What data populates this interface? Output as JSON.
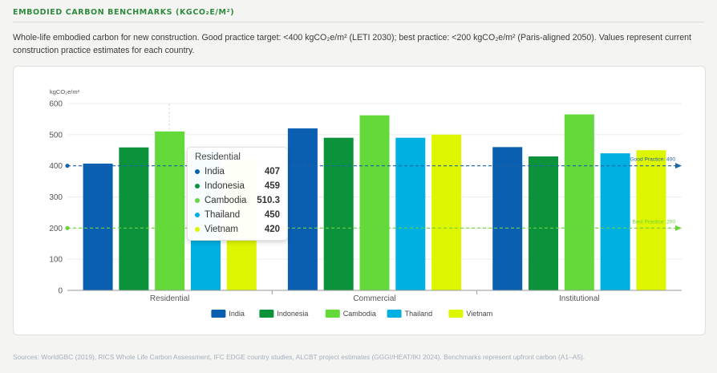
{
  "header": {
    "title": "EMBODIED CARBON BENCHMARKS (KGCO₂E/M²)",
    "description": "Whole-life embodied carbon for new construction. Good practice target: <400 kgCO₂e/m² (LETI 2030); best practice: <200 kgCO₂e/m² (Paris-aligned 2050). Values represent current construction practice estimates for each country."
  },
  "chart_data": {
    "type": "bar",
    "ylabel": "kgCO₂e/m²",
    "ylim": [
      0,
      600
    ],
    "yticks": [
      0,
      100,
      200,
      300,
      400,
      500,
      600
    ],
    "categories": [
      "Residential",
      "Commercial",
      "Institutional"
    ],
    "series": [
      {
        "name": "India",
        "color": "#0a5fb0",
        "values": [
          407,
          520,
          460
        ]
      },
      {
        "name": "Indonesia",
        "color": "#0c923a",
        "values": [
          459,
          490,
          430
        ]
      },
      {
        "name": "Cambodia",
        "color": "#63d93a",
        "values": [
          510.3,
          562,
          565
        ]
      },
      {
        "name": "Thailand",
        "color": "#00b0e0",
        "values": [
          450,
          490,
          440
        ]
      },
      {
        "name": "Vietnam",
        "color": "#def500",
        "values": [
          420,
          500,
          450
        ]
      }
    ],
    "reference_lines": [
      {
        "label": "Good Practice: 400",
        "value": 400,
        "color": "#1a64a8"
      },
      {
        "label": "Best Practice: 200",
        "value": 200,
        "color": "#6bd23f"
      }
    ],
    "legend_position": "bottom-center",
    "grid": true
  },
  "tooltip": {
    "title": "Residential",
    "rows": [
      {
        "name": "India",
        "value": "407",
        "color": "#0a5fb0"
      },
      {
        "name": "Indonesia",
        "value": "459",
        "color": "#0c923a"
      },
      {
        "name": "Cambodia",
        "value": "510.3",
        "color": "#63d93a"
      },
      {
        "name": "Thailand",
        "value": "450",
        "color": "#00b0e0"
      },
      {
        "name": "Vietnam",
        "value": "420",
        "color": "#def500"
      }
    ]
  },
  "footer": {
    "source": "Sources: WorldGBC (2019), RICS Whole Life Carbon Assessment, IFC EDGE country studies, ALCBT project estimates (GGGI/HEAT/IKI 2024). Benchmarks represent upfront carbon (A1–A5)."
  }
}
